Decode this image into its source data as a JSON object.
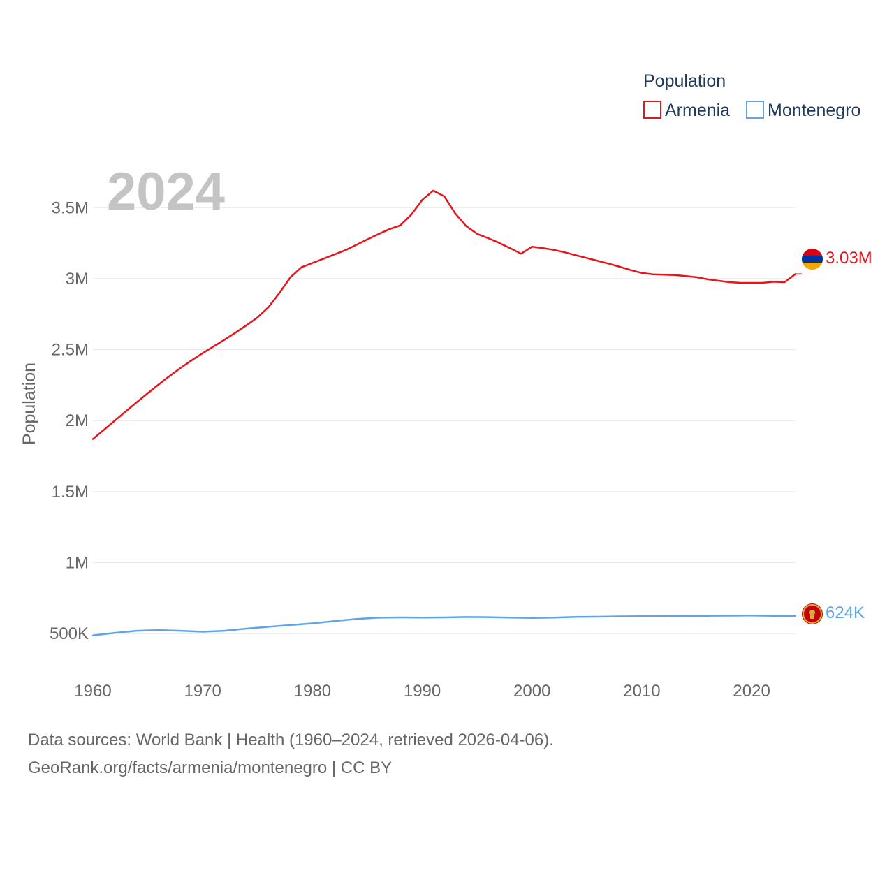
{
  "colors": {
    "armenia": "#e8141b",
    "montenegro": "#5ea5e6",
    "grid": "#e8e8e8",
    "tick": "#666666",
    "legend": "#1f3a5a",
    "watermark": "#c4c4c4"
  },
  "legend": {
    "title": "Population",
    "items": [
      "Armenia",
      "Montenegro"
    ]
  },
  "watermark_year": "2024",
  "end_labels": {
    "armenia": "3.03M",
    "montenegro": "624K"
  },
  "flags": {
    "armenia": "armenia-flag-icon",
    "montenegro": "montenegro-flag-icon"
  },
  "source": {
    "line1": "Data sources: World Bank | Health (1960–2024, retrieved 2026-04-06).",
    "line2": "GeoRank.org/facts/armenia/montenegro | CC BY"
  },
  "chart_data": {
    "type": "line",
    "title": "Population",
    "xlabel": "",
    "ylabel": "Population",
    "xlim": [
      1960,
      2024
    ],
    "ylim": [
      240000,
      3880000
    ],
    "x_ticks": [
      "1960",
      "1970",
      "1980",
      "1990",
      "2000",
      "2010",
      "2020"
    ],
    "x_tick_values": [
      1960,
      1970,
      1980,
      1990,
      2000,
      2010,
      2020
    ],
    "y_ticks": [
      "500K",
      "1M",
      "1.5M",
      "2M",
      "2.5M",
      "3M",
      "3.5M"
    ],
    "y_tick_values": [
      500000,
      1000000,
      1500000,
      2000000,
      2500000,
      3000000,
      3500000
    ],
    "grid": true,
    "legend_position": "top-right",
    "series": [
      {
        "name": "Armenia",
        "x": [
          1960,
          1961,
          1962,
          1963,
          1964,
          1965,
          1966,
          1967,
          1968,
          1969,
          1970,
          1971,
          1972,
          1973,
          1974,
          1975,
          1976,
          1977,
          1978,
          1979,
          1980,
          1981,
          1982,
          1983,
          1984,
          1985,
          1986,
          1987,
          1988,
          1989,
          1990,
          1991,
          1992,
          1993,
          1994,
          1995,
          1996,
          1997,
          1998,
          1999,
          2000,
          2001,
          2002,
          2003,
          2004,
          2005,
          2006,
          2007,
          2008,
          2009,
          2010,
          2011,
          2012,
          2013,
          2014,
          2015,
          2016,
          2017,
          2018,
          2019,
          2020,
          2021,
          2022,
          2023,
          2024
        ],
        "values": [
          1870000,
          1935000,
          2000000,
          2065000,
          2130000,
          2193000,
          2255000,
          2315000,
          2372000,
          2425000,
          2475000,
          2523000,
          2570000,
          2620000,
          2672000,
          2727000,
          2800000,
          2900000,
          3010000,
          3080000,
          3110000,
          3140000,
          3170000,
          3200000,
          3238000,
          3276000,
          3313000,
          3348000,
          3375000,
          3450000,
          3555000,
          3620000,
          3580000,
          3460000,
          3370000,
          3315000,
          3285000,
          3252000,
          3215000,
          3175000,
          3225000,
          3215000,
          3202000,
          3185000,
          3165000,
          3145000,
          3125000,
          3105000,
          3083000,
          3060000,
          3040000,
          3030000,
          3028000,
          3025000,
          3018000,
          3010000,
          2995000,
          2985000,
          2975000,
          2970000,
          2970000,
          2970000,
          2978000,
          2975000,
          3033000
        ]
      },
      {
        "name": "Montenegro",
        "x": [
          1960,
          1962,
          1964,
          1966,
          1968,
          1970,
          1972,
          1974,
          1976,
          1978,
          1980,
          1982,
          1984,
          1986,
          1988,
          1990,
          1992,
          1994,
          1996,
          1998,
          2000,
          2002,
          2004,
          2006,
          2008,
          2010,
          2012,
          2014,
          2016,
          2018,
          2020,
          2022,
          2024
        ],
        "values": [
          487000,
          505000,
          520000,
          525000,
          520000,
          513000,
          520000,
          535000,
          548000,
          560000,
          572000,
          588000,
          603000,
          612000,
          614000,
          613000,
          614000,
          617000,
          616000,
          613000,
          610000,
          613000,
          618000,
          619000,
          621000,
          622000,
          622000,
          624000,
          625000,
          626000,
          627000,
          625000,
          624000
        ]
      }
    ]
  }
}
